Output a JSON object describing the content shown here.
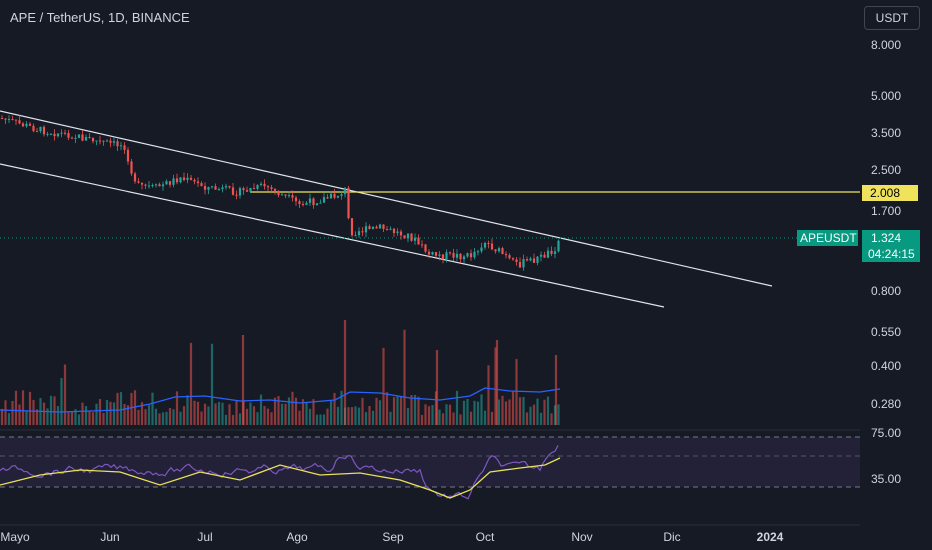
{
  "header": {
    "title": "APE / TetherUS, 1D, BINANCE",
    "currency_button": "USDT"
  },
  "price_axis": {
    "ticks": [
      "8.000",
      "5.000",
      "3.500",
      "2.500",
      "1.700",
      "0.800",
      "0.550",
      "0.400",
      "0.280"
    ]
  },
  "rsi_axis": {
    "ticks": [
      "75.00",
      "35.00"
    ]
  },
  "time_axis": {
    "labels": [
      "Mayo",
      "Jun",
      "Jul",
      "Ago",
      "Sep",
      "Oct",
      "Nov",
      "Dic",
      "2024"
    ]
  },
  "horizontal_line": {
    "label": "2.008",
    "color": "#f0e35c"
  },
  "current_price": {
    "symbol": "APEUSDT",
    "price": "1.324",
    "countdown": "04:24:15",
    "color": "#089981"
  },
  "colors": {
    "up": "#26a69a",
    "down": "#ef5350",
    "volume_ma": "#2962ff",
    "rsi": "#7e57c2",
    "rsi_ma": "#e8e15a",
    "background": "#161a25"
  },
  "chart_data": {
    "type": "candlestick",
    "symbol": "APE / TetherUS",
    "interval": "1D",
    "exchange": "BINANCE",
    "ohlc_close_approx": [
      {
        "x": "Mayo",
        "y": 4.1
      },
      {
        "x": "Jun",
        "y": 3.4
      },
      {
        "x": "Jun",
        "y": 2.2
      },
      {
        "x": "Jul",
        "y": 2.4
      },
      {
        "x": "Ago",
        "y": 2.1
      },
      {
        "x": "Ago",
        "y": 2.0
      },
      {
        "x": "Ago",
        "y": 1.45
      },
      {
        "x": "Sep",
        "y": 1.2
      },
      {
        "x": "Oct",
        "y": 1.3
      },
      {
        "x": "Oct",
        "y": 1.07
      },
      {
        "x": "Oct",
        "y": 1.324
      }
    ],
    "hline": 2.008,
    "last_price": 1.324,
    "log_scale": true,
    "indicators": [
      "Volume + MA",
      "RSI + MA"
    ],
    "rsi_levels": [
      75,
      35
    ]
  }
}
